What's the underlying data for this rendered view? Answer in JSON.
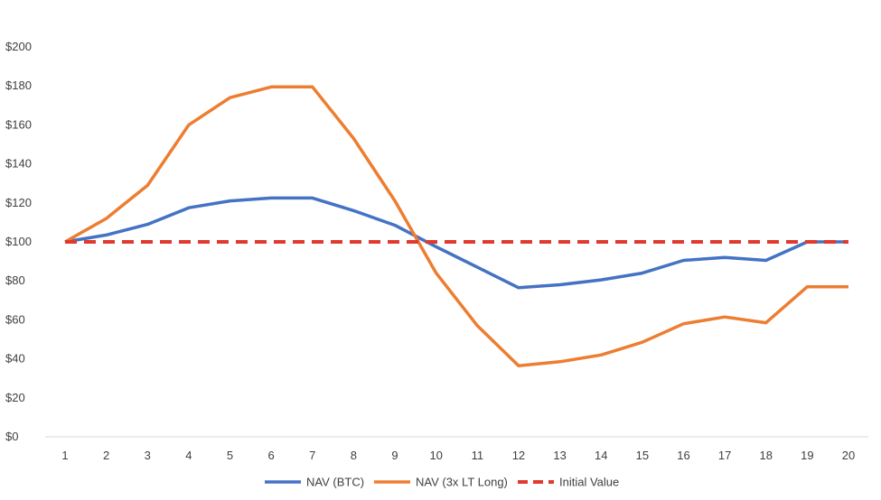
{
  "chart_data": {
    "type": "line",
    "title": "",
    "xlabel": "",
    "ylabel": "",
    "x": [
      1,
      2,
      3,
      4,
      5,
      6,
      7,
      8,
      9,
      10,
      11,
      12,
      13,
      14,
      15,
      16,
      17,
      18,
      19,
      20
    ],
    "ylim": [
      0,
      200
    ],
    "yticks": [
      0,
      20,
      40,
      60,
      80,
      100,
      120,
      140,
      160,
      180,
      200
    ],
    "ytick_labels": [
      "$0",
      "$20",
      "$40",
      "$60",
      "$80",
      "$100",
      "$120",
      "$140",
      "$160",
      "$180",
      "$200"
    ],
    "grid": false,
    "legend_position": "bottom",
    "series": [
      {
        "name": "NAV (BTC)",
        "color": "#4472C4",
        "style": "solid",
        "values": [
          100,
          103.5,
          109,
          117.5,
          121,
          122.5,
          122.5,
          116,
          108.5,
          97.5,
          87,
          76.5,
          78,
          80.5,
          84,
          90.5,
          92,
          90.5,
          100,
          100
        ]
      },
      {
        "name": "NAV (3x LT Long)",
        "color": "#ED7D31",
        "style": "solid",
        "values": [
          100,
          112,
          129,
          160,
          174,
          179.5,
          179.5,
          153,
          121,
          84,
          57,
          36.5,
          38.5,
          42,
          48.5,
          58,
          61.5,
          58.5,
          77,
          77
        ]
      },
      {
        "name": "Initial Value",
        "color": "#E03A2E",
        "style": "dashed",
        "values": [
          100,
          100,
          100,
          100,
          100,
          100,
          100,
          100,
          100,
          100,
          100,
          100,
          100,
          100,
          100,
          100,
          100,
          100,
          100,
          100
        ]
      }
    ]
  }
}
